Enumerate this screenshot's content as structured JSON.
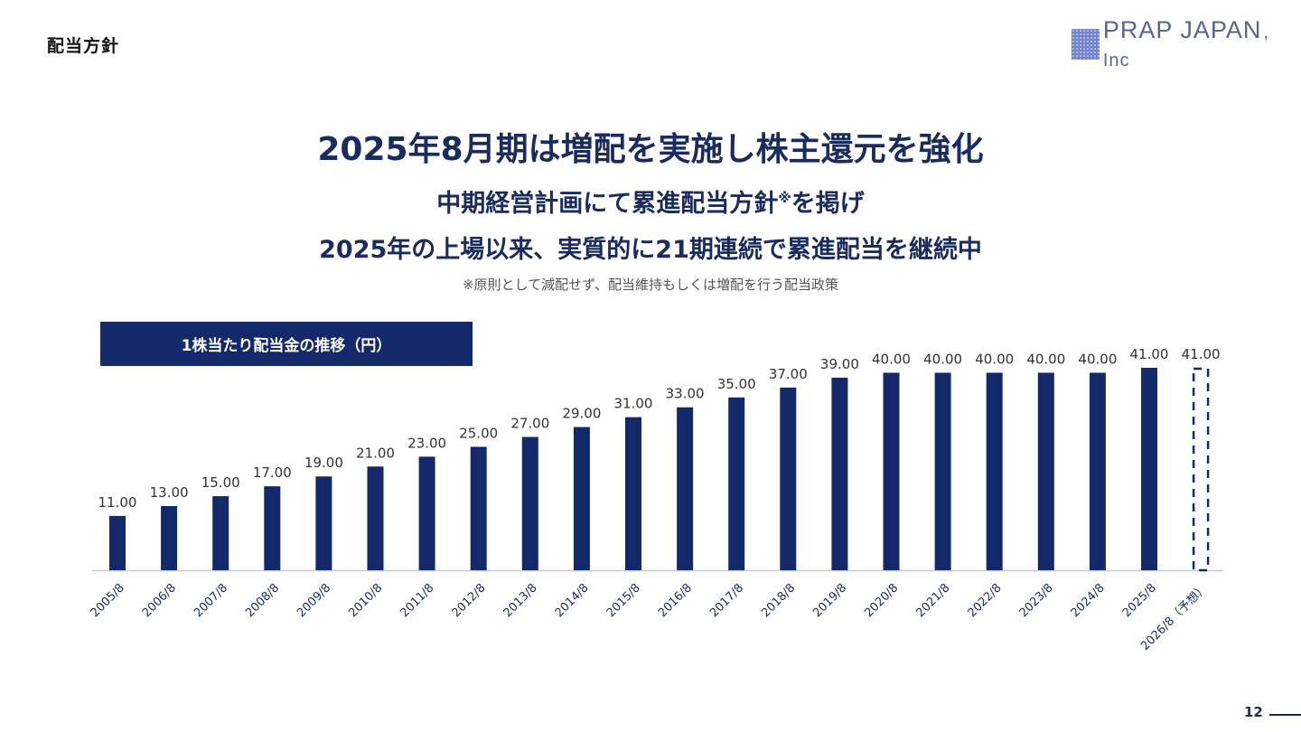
{
  "header": {
    "section_title": "配当方針",
    "logo_text": "PRAP JAPAN",
    "logo_suffix": ", Inc"
  },
  "headline": "2025年8月期は増配を実施し株主還元を強化",
  "sub1_main": "中期経営計画にて累進配当方針",
  "sub1_mark": "※",
  "sub1_tail": "を掲げ",
  "sub2": "2025年の上場以来、実質的に21期連続で累進配当を継続中",
  "note": "※原則として減配せず、配当維持もしくは増配を行う配当政策",
  "chart_label": "1株当たり配当金の推移（円）",
  "page_number": "12",
  "colors": {
    "bar": "#13296a",
    "axis": "#cccccc",
    "text": "#1a2b5e"
  },
  "chart_data": {
    "type": "bar",
    "title": "1株当たり配当金の推移（円）",
    "categories": [
      "2005/8",
      "2006/8",
      "2007/8",
      "2008/8",
      "2009/8",
      "2010/8",
      "2011/8",
      "2012/8",
      "2013/8",
      "2014/8",
      "2015/8",
      "2016/8",
      "2017/8",
      "2018/8",
      "2019/8",
      "2020/8",
      "2021/8",
      "2022/8",
      "2023/8",
      "2024/8",
      "2025/8",
      "2026/8（予想）"
    ],
    "values": [
      11,
      13,
      15,
      17,
      19,
      21,
      23,
      25,
      27,
      29,
      31,
      33,
      35,
      37,
      39,
      40,
      40,
      40,
      40,
      40,
      41,
      41
    ],
    "labels": [
      "11.00",
      "13.00",
      "15.00",
      "17.00",
      "19.00",
      "21.00",
      "23.00",
      "25.00",
      "27.00",
      "29.00",
      "31.00",
      "33.00",
      "35.00",
      "37.00",
      "39.00",
      "40.00",
      "40.00",
      "40.00",
      "40.00",
      "40.00",
      "41.00",
      "41.00"
    ],
    "forecast": [
      false,
      false,
      false,
      false,
      false,
      false,
      false,
      false,
      false,
      false,
      false,
      false,
      false,
      false,
      false,
      false,
      false,
      false,
      false,
      false,
      false,
      true
    ],
    "ylim": [
      0,
      41
    ]
  }
}
